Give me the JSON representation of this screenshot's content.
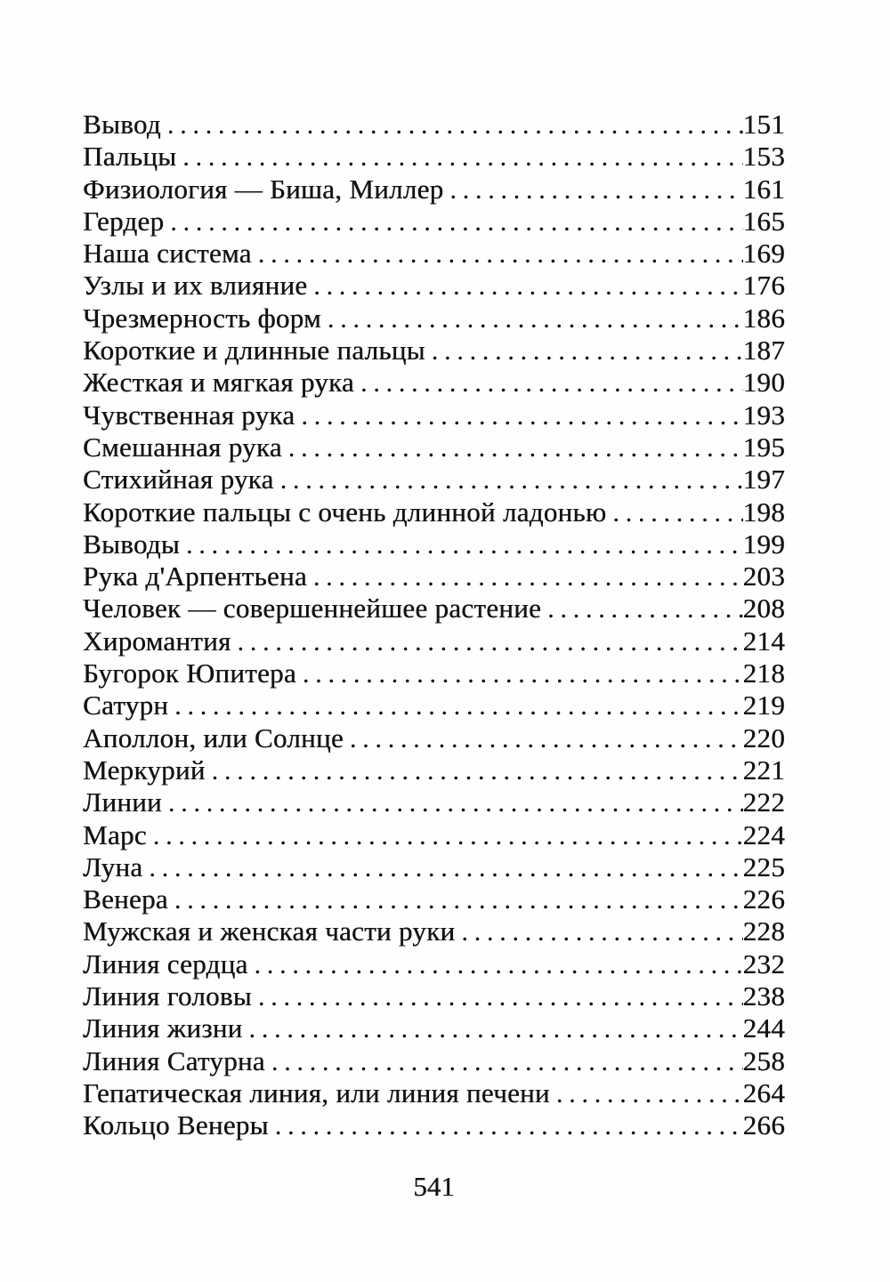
{
  "toc": {
    "entries": [
      {
        "title": "Вывод",
        "page": "151"
      },
      {
        "title": "Пальцы",
        "page": "153"
      },
      {
        "title": "Физиология — Биша, Миллер",
        "page": "161"
      },
      {
        "title": "Гердер",
        "page": "165"
      },
      {
        "title": "Наша система",
        "page": "169"
      },
      {
        "title": "Узлы и их влияние",
        "page": "176"
      },
      {
        "title": "Чрезмерность форм",
        "page": "186"
      },
      {
        "title": "Короткие и длинные пальцы",
        "page": "187"
      },
      {
        "title": "Жесткая и мягкая рука",
        "page": "190"
      },
      {
        "title": "Чувственная рука",
        "page": "193"
      },
      {
        "title": "Смешанная рука",
        "page": "195"
      },
      {
        "title": "Стихийная рука",
        "page": "197"
      },
      {
        "title": "Короткие пальцы с очень длинной ладонью",
        "page": "198"
      },
      {
        "title": "Выводы",
        "page": "199"
      },
      {
        "title": "Рука д'Арпентьена",
        "page": "203"
      },
      {
        "title": "Человек — совершеннейшее растение",
        "page": "208"
      },
      {
        "title": "Хиромантия",
        "page": "214"
      },
      {
        "title": "Бугорок Юпитера",
        "page": "218"
      },
      {
        "title": "Сатурн",
        "page": "219"
      },
      {
        "title": "Аполлон, или Солнце",
        "page": "220"
      },
      {
        "title": "Меркурий",
        "page": "221"
      },
      {
        "title": "Линии",
        "page": "222"
      },
      {
        "title": "Марс",
        "page": "224"
      },
      {
        "title": "Луна",
        "page": "225"
      },
      {
        "title": "Венера",
        "page": "226"
      },
      {
        "title": "Мужская и женская части руки",
        "page": "228"
      },
      {
        "title": "Линия сердца",
        "page": "232"
      },
      {
        "title": "Линия головы",
        "page": "238"
      },
      {
        "title": "Линия жизни",
        "page": "244"
      },
      {
        "title": "Линия Сатурна",
        "page": "258"
      },
      {
        "title": "Гепатическая линия, или линия печени",
        "page": "264"
      },
      {
        "title": "Кольцо Венеры",
        "page": "266"
      }
    ]
  },
  "footer": {
    "page_number": "541"
  },
  "colors": {
    "ink": "#131313",
    "paper": "#fefefc"
  }
}
